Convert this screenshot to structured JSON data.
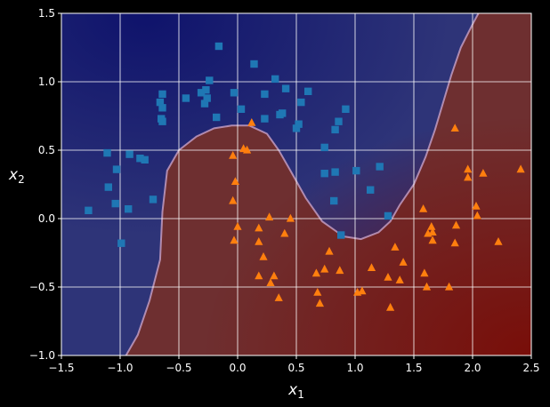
{
  "chart_data": {
    "type": "scatter",
    "title": "",
    "xlabel": {
      "main": "x",
      "sub": "1"
    },
    "ylabel": {
      "main": "x",
      "sub": "2"
    },
    "xlim": [
      -1.5,
      2.5
    ],
    "ylim": [
      -1.0,
      1.5
    ],
    "xticks": [
      -1.5,
      -1.0,
      -0.5,
      0.0,
      0.5,
      1.0,
      1.5,
      2.0,
      2.5
    ],
    "yticks": [
      -1.0,
      -0.5,
      0.0,
      0.5,
      1.0,
      1.5
    ],
    "xtick_labels": [
      "−1.5",
      "−1.0",
      "−0.5",
      "0.0",
      "0.5",
      "1.0",
      "1.5",
      "2.0",
      "2.5"
    ],
    "ytick_labels": [
      "−1.0",
      "−0.5",
      "0.0",
      "0.5",
      "1.0",
      "1.5"
    ],
    "grid": true,
    "colors": {
      "background": "#000000",
      "region_class0": "#2e3478",
      "region_class1": "#6e2f30",
      "class0_marker": "#1f77b4",
      "class1_marker": "#ff7f0e",
      "grid": "#ffffff",
      "boundary": "#c9a3c8"
    },
    "decision_boundary": [
      [
        -0.95,
        -1.0
      ],
      [
        -0.85,
        -0.85
      ],
      [
        -0.75,
        -0.6
      ],
      [
        -0.66,
        -0.3
      ],
      [
        -0.64,
        0.05
      ],
      [
        -0.6,
        0.35
      ],
      [
        -0.5,
        0.5
      ],
      [
        -0.35,
        0.6
      ],
      [
        -0.2,
        0.66
      ],
      [
        -0.05,
        0.68
      ],
      [
        0.1,
        0.68
      ],
      [
        0.25,
        0.62
      ],
      [
        0.35,
        0.5
      ],
      [
        0.45,
        0.35
      ],
      [
        0.58,
        0.15
      ],
      [
        0.72,
        -0.02
      ],
      [
        0.9,
        -0.13
      ],
      [
        1.05,
        -0.15
      ],
      [
        1.2,
        -0.1
      ],
      [
        1.3,
        -0.02
      ],
      [
        1.38,
        0.1
      ],
      [
        1.5,
        0.25
      ],
      [
        1.6,
        0.45
      ],
      [
        1.68,
        0.65
      ],
      [
        1.75,
        0.85
      ],
      [
        1.82,
        1.05
      ],
      [
        1.9,
        1.25
      ],
      [
        2.0,
        1.42
      ],
      [
        2.05,
        1.5
      ]
    ],
    "series": [
      {
        "marker": "square",
        "points": [
          [
            -1.27,
            0.06
          ],
          [
            -1.11,
            0.48
          ],
          [
            -1.1,
            0.23
          ],
          [
            -1.04,
            0.11
          ],
          [
            -1.03,
            0.36
          ],
          [
            -0.99,
            -0.18
          ],
          [
            -0.93,
            0.07
          ],
          [
            -0.92,
            0.47
          ],
          [
            -0.83,
            0.44
          ],
          [
            -0.79,
            0.43
          ],
          [
            -0.72,
            0.14
          ],
          [
            -0.66,
            0.85
          ],
          [
            -0.65,
            0.73
          ],
          [
            -0.64,
            0.91
          ],
          [
            -0.64,
            0.81
          ],
          [
            -0.64,
            0.71
          ],
          [
            -0.44,
            0.88
          ],
          [
            -0.31,
            0.92
          ],
          [
            -0.28,
            0.84
          ],
          [
            -0.27,
            0.94
          ],
          [
            -0.26,
            0.88
          ],
          [
            -0.24,
            1.01
          ],
          [
            -0.18,
            0.74
          ],
          [
            -0.16,
            1.26
          ],
          [
            -0.03,
            0.92
          ],
          [
            0.03,
            0.8
          ],
          [
            0.14,
            1.13
          ],
          [
            0.23,
            0.91
          ],
          [
            0.23,
            0.73
          ],
          [
            0.32,
            1.02
          ],
          [
            0.36,
            0.76
          ],
          [
            0.38,
            0.77
          ],
          [
            0.41,
            0.95
          ],
          [
            0.5,
            0.66
          ],
          [
            0.52,
            0.69
          ],
          [
            0.54,
            0.85
          ],
          [
            0.6,
            0.93
          ],
          [
            0.74,
            0.52
          ],
          [
            0.74,
            0.33
          ],
          [
            0.82,
            0.13
          ],
          [
            0.83,
            0.34
          ],
          [
            0.83,
            0.65
          ],
          [
            0.86,
            0.71
          ],
          [
            0.88,
            -0.12
          ],
          [
            0.92,
            0.8
          ],
          [
            1.01,
            0.35
          ],
          [
            1.13,
            0.21
          ],
          [
            1.21,
            0.38
          ],
          [
            1.28,
            0.02
          ]
        ]
      },
      {
        "marker": "triangle",
        "points": [
          [
            -0.04,
            0.46
          ],
          [
            -0.04,
            0.13
          ],
          [
            -0.03,
            -0.16
          ],
          [
            -0.02,
            0.27
          ],
          [
            0.0,
            -0.06
          ],
          [
            0.05,
            0.51
          ],
          [
            0.08,
            0.5
          ],
          [
            0.12,
            0.7
          ],
          [
            0.18,
            -0.07
          ],
          [
            0.18,
            -0.17
          ],
          [
            0.18,
            -0.42
          ],
          [
            0.22,
            -0.28
          ],
          [
            0.27,
            0.01
          ],
          [
            0.28,
            -0.47
          ],
          [
            0.31,
            -0.42
          ],
          [
            0.35,
            -0.58
          ],
          [
            0.4,
            -0.11
          ],
          [
            0.45,
            0.0
          ],
          [
            0.67,
            -0.4
          ],
          [
            0.68,
            -0.54
          ],
          [
            0.7,
            -0.62
          ],
          [
            0.74,
            -0.37
          ],
          [
            0.78,
            -0.24
          ],
          [
            0.87,
            -0.38
          ],
          [
            1.02,
            -0.54
          ],
          [
            1.06,
            -0.53
          ],
          [
            1.14,
            -0.36
          ],
          [
            1.28,
            -0.43
          ],
          [
            1.3,
            -0.65
          ],
          [
            1.34,
            -0.21
          ],
          [
            1.38,
            -0.45
          ],
          [
            1.41,
            -0.32
          ],
          [
            1.58,
            0.07
          ],
          [
            1.59,
            -0.4
          ],
          [
            1.61,
            -0.5
          ],
          [
            1.62,
            -0.11
          ],
          [
            1.65,
            -0.06
          ],
          [
            1.66,
            -0.1
          ],
          [
            1.66,
            -0.16
          ],
          [
            1.8,
            -0.5
          ],
          [
            1.85,
            0.66
          ],
          [
            1.85,
            -0.18
          ],
          [
            1.86,
            -0.05
          ],
          [
            1.96,
            0.36
          ],
          [
            1.96,
            0.3
          ],
          [
            2.03,
            0.09
          ],
          [
            2.04,
            0.02
          ],
          [
            2.09,
            0.33
          ],
          [
            2.22,
            -0.17
          ],
          [
            2.41,
            0.36
          ]
        ]
      }
    ]
  }
}
